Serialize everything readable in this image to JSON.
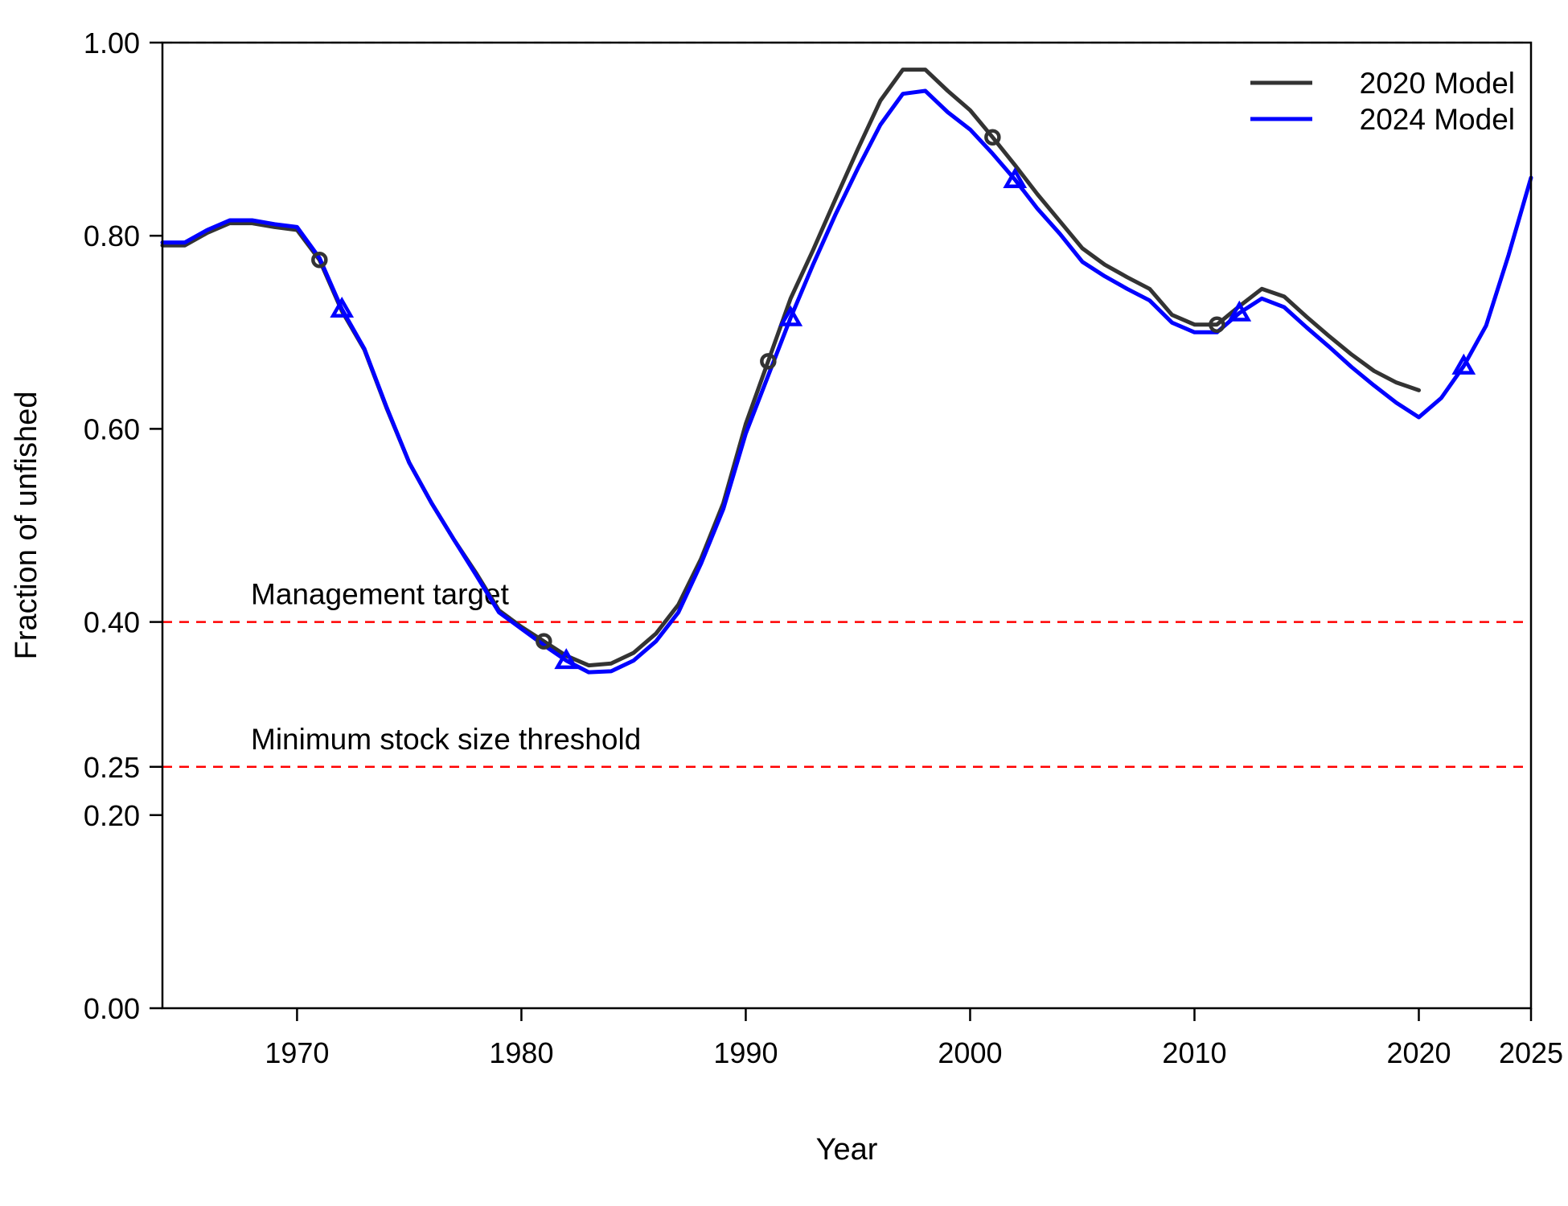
{
  "chart_data": {
    "type": "line",
    "xlabel": "Year",
    "ylabel": "Fraction of unfished",
    "xlim": [
      1964,
      2025
    ],
    "ylim": [
      0,
      1.0
    ],
    "xticks": [
      1970,
      1980,
      1990,
      2000,
      2010,
      2020,
      2025
    ],
    "yticks": [
      0.0,
      0.2,
      0.25,
      0.4,
      0.6,
      0.8,
      1.0
    ],
    "ytick_labels": [
      "0.00",
      "0.20",
      "0.25",
      "0.40",
      "0.60",
      "0.80",
      "1.00"
    ],
    "grid": false,
    "legend_position": "top-right",
    "reference_lines": [
      {
        "y": 1.0,
        "color": "#bdbdbd",
        "style": "dashed",
        "label": ""
      },
      {
        "y": 0.4,
        "color": "#ff0000",
        "style": "dashed",
        "label": "Management target"
      },
      {
        "y": 0.25,
        "color": "#ff0000",
        "style": "dashed",
        "label": "Minimum stock size threshold"
      }
    ],
    "series": [
      {
        "name": "2020 Model",
        "color": "#333333",
        "marker": "circle",
        "marker_x": [
          1971,
          1981,
          1991,
          2001,
          2011
        ],
        "x": [
          1964,
          1965,
          1966,
          1967,
          1968,
          1969,
          1970,
          1971,
          1972,
          1973,
          1974,
          1975,
          1976,
          1977,
          1978,
          1979,
          1980,
          1981,
          1982,
          1983,
          1984,
          1985,
          1986,
          1987,
          1988,
          1989,
          1990,
          1991,
          1992,
          1993,
          1994,
          1995,
          1996,
          1997,
          1998,
          1999,
          2000,
          2001,
          2002,
          2003,
          2004,
          2005,
          2006,
          2007,
          2008,
          2009,
          2010,
          2011,
          2012,
          2013,
          2014,
          2015,
          2016,
          2017,
          2018,
          2019,
          2020
        ],
        "y": [
          0.79,
          0.79,
          0.803,
          0.813,
          0.813,
          0.809,
          0.806,
          0.775,
          0.722,
          0.682,
          0.621,
          0.565,
          0.523,
          0.485,
          0.45,
          0.412,
          0.395,
          0.38,
          0.365,
          0.355,
          0.357,
          0.368,
          0.388,
          0.418,
          0.465,
          0.523,
          0.605,
          0.67,
          0.735,
          0.785,
          0.838,
          0.89,
          0.94,
          0.972,
          0.972,
          0.95,
          0.93,
          0.902,
          0.873,
          0.843,
          0.815,
          0.787,
          0.77,
          0.757,
          0.745,
          0.718,
          0.708,
          0.708,
          0.727,
          0.745,
          0.737,
          0.716,
          0.696,
          0.677,
          0.66,
          0.648,
          0.64
        ]
      },
      {
        "name": "2024 Model",
        "color": "#0000ff",
        "marker": "triangle",
        "marker_x": [
          1972,
          1982,
          1992,
          2002,
          2012,
          2022
        ],
        "x": [
          1964,
          1965,
          1966,
          1967,
          1968,
          1969,
          1970,
          1971,
          1972,
          1973,
          1974,
          1975,
          1976,
          1977,
          1978,
          1979,
          1980,
          1981,
          1982,
          1983,
          1984,
          1985,
          1986,
          1987,
          1988,
          1989,
          1990,
          1991,
          1992,
          1993,
          1994,
          1995,
          1996,
          1997,
          1998,
          1999,
          2000,
          2001,
          2002,
          2003,
          2004,
          2005,
          2006,
          2007,
          2008,
          2009,
          2010,
          2011,
          2012,
          2013,
          2014,
          2015,
          2016,
          2017,
          2018,
          2019,
          2020,
          2021,
          2022,
          2023,
          2024,
          2025
        ],
        "y": [
          0.793,
          0.793,
          0.806,
          0.816,
          0.816,
          0.812,
          0.809,
          0.777,
          0.724,
          0.683,
          0.622,
          0.565,
          0.523,
          0.485,
          0.448,
          0.41,
          0.393,
          0.376,
          0.36,
          0.348,
          0.349,
          0.36,
          0.38,
          0.41,
          0.46,
          0.517,
          0.595,
          0.655,
          0.715,
          0.77,
          0.822,
          0.87,
          0.915,
          0.947,
          0.95,
          0.928,
          0.91,
          0.885,
          0.858,
          0.828,
          0.802,
          0.773,
          0.758,
          0.745,
          0.733,
          0.71,
          0.7,
          0.7,
          0.72,
          0.735,
          0.726,
          0.705,
          0.685,
          0.664,
          0.645,
          0.627,
          0.612,
          0.632,
          0.665,
          0.707,
          0.78,
          0.86
        ]
      }
    ]
  }
}
